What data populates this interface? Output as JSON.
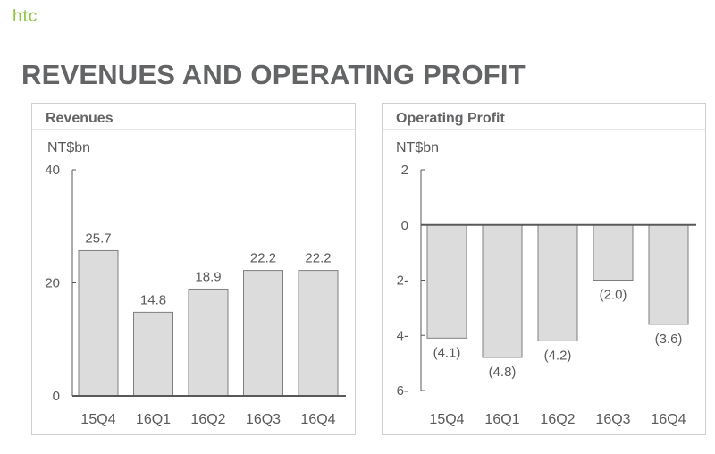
{
  "brand": {
    "logo_text": "htc",
    "accent": "#8cc63f"
  },
  "page_title": "REVENUES AND OPERATING PROFIT",
  "colors": {
    "bar_fill": "#dcdcdc",
    "bar_stroke": "#7f7f7f",
    "axis": "#595959",
    "text": "#595959"
  },
  "chart_data": [
    {
      "type": "bar",
      "title": "Revenues",
      "ylabel": "NT$bn",
      "xlabel": "",
      "categories": [
        "15Q4",
        "16Q1",
        "16Q2",
        "16Q3",
        "16Q4"
      ],
      "values": [
        25.7,
        14.8,
        18.9,
        22.2,
        22.2
      ],
      "data_labels": [
        "25.7",
        "14.8",
        "18.9",
        "22.2",
        "22.2"
      ],
      "ylim": [
        0,
        40
      ],
      "yticks": [
        0,
        20,
        40
      ],
      "ytick_labels": [
        "0",
        "20",
        "40"
      ],
      "grid": false,
      "legend": "none"
    },
    {
      "type": "bar",
      "title": "Operating Profit",
      "ylabel": "NT$bn",
      "xlabel": "",
      "categories": [
        "15Q4",
        "16Q1",
        "16Q2",
        "16Q3",
        "16Q4"
      ],
      "values": [
        -4.1,
        -4.8,
        -4.2,
        -2.0,
        -3.6
      ],
      "data_labels": [
        "(4.1)",
        "(4.8)",
        "(4.2)",
        "(2.0)",
        "(3.6)"
      ],
      "ylim": [
        -6,
        2
      ],
      "yticks": [
        2,
        0,
        -2,
        -4,
        -6
      ],
      "ytick_labels": [
        "2",
        "0",
        "2-",
        "4-",
        "6-"
      ],
      "grid": false,
      "legend": "none"
    }
  ]
}
